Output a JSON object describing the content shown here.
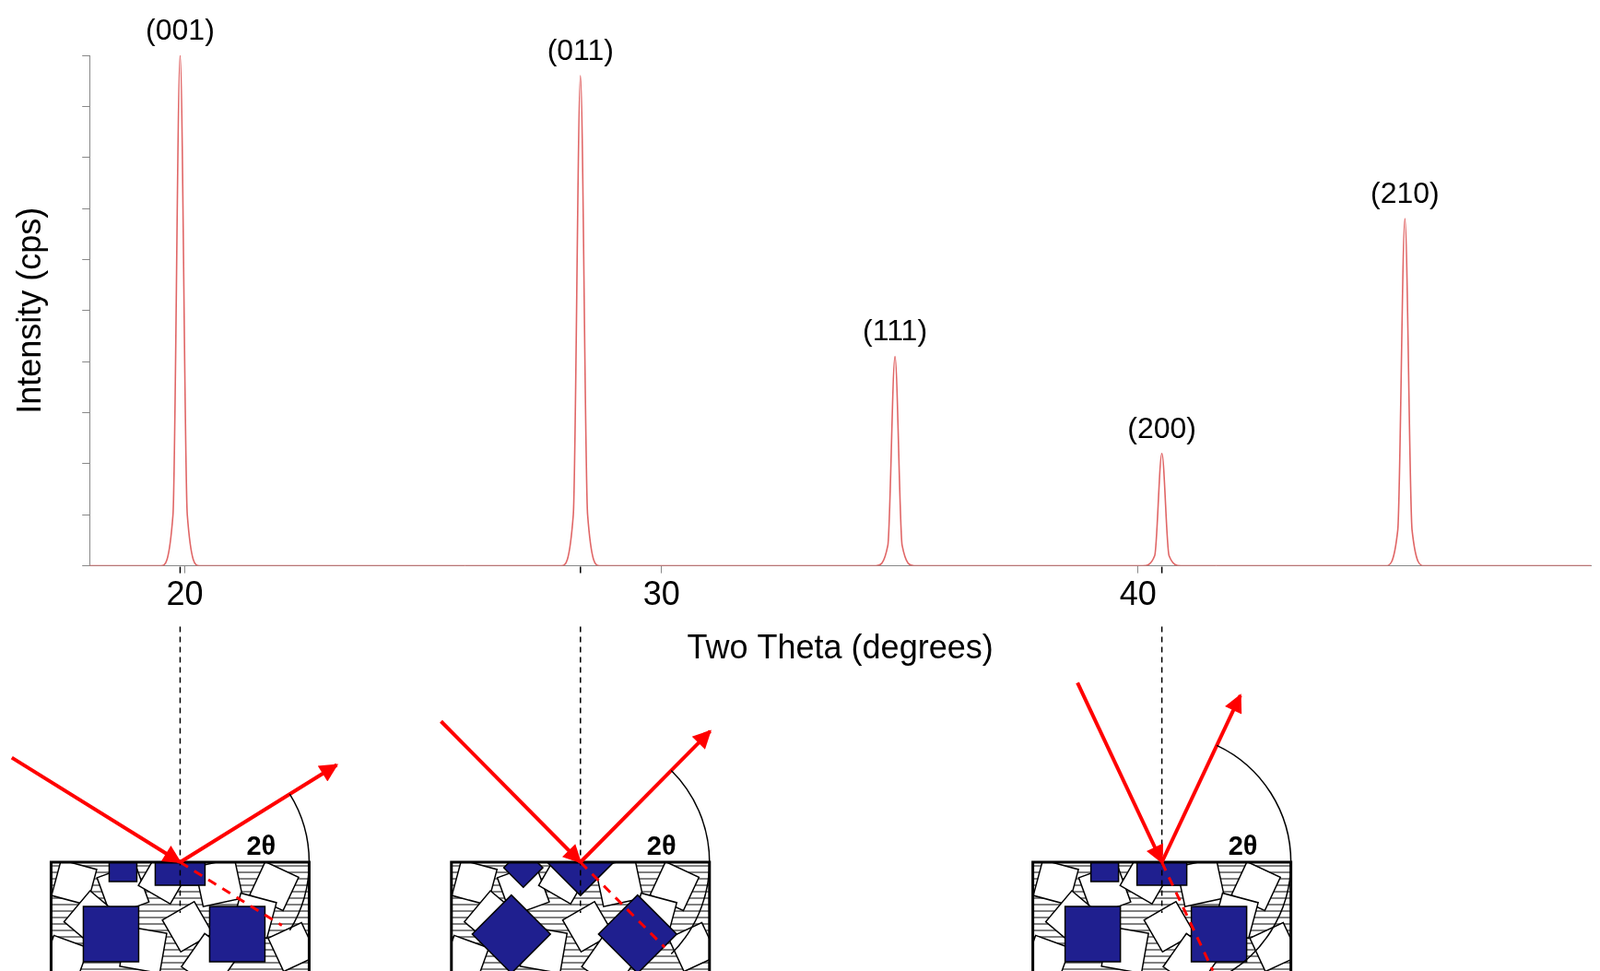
{
  "chart_data": {
    "type": "line",
    "x_label": "Two Theta (degrees)",
    "y_label": "Intensity (cps)",
    "x": [
      18,
      19.5,
      19.75,
      19.9,
      20.05,
      20.3,
      27.9,
      28.15,
      28.3,
      28.45,
      28.7,
      34.5,
      34.75,
      34.9,
      35.05,
      35.3,
      40.1,
      40.35,
      40.5,
      40.65,
      40.9,
      45.2,
      45.45,
      45.6,
      45.75,
      46.0,
      49.5
    ],
    "values": [
      0,
      0,
      10,
      100,
      10,
      0,
      0,
      10,
      96,
      10,
      0,
      0,
      4,
      41,
      4,
      0,
      0,
      2,
      22,
      2,
      0,
      0,
      7,
      68,
      7,
      0,
      0
    ],
    "color": "#e06666",
    "marker": "none",
    "line_style": "solid",
    "xlim": [
      18,
      49.5
    ],
    "xticks": [
      20,
      30,
      40
    ],
    "ylim": [
      0,
      100
    ],
    "yticks": [
      0,
      10,
      20,
      30,
      40,
      50,
      60,
      70,
      80,
      90,
      100
    ],
    "grid": false,
    "tick_labels": "x",
    "annotations": [
      {
        "text": "(001)",
        "x": 19.9,
        "y": 100
      },
      {
        "text": "(011)",
        "x": 28.3,
        "y": 96
      },
      {
        "text": "(111)",
        "x": 34.9,
        "y": 41
      },
      {
        "text": "(200)",
        "x": 40.5,
        "y": 22
      },
      {
        "text": "(210)",
        "x": 45.6,
        "y": 68
      }
    ]
  },
  "diagram": {
    "angle_label": "2θ",
    "peaks": [
      "(001)",
      "(011)",
      "(200)"
    ]
  }
}
